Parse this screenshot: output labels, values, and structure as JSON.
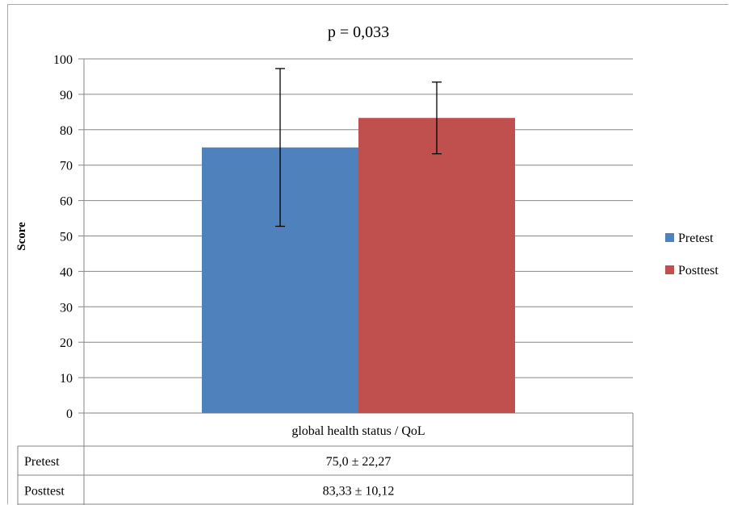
{
  "chart_data": {
    "type": "bar",
    "title": "p = 0,033",
    "ylabel": "Score",
    "ylim": [
      0,
      100
    ],
    "yticks": [
      0,
      10,
      20,
      30,
      40,
      50,
      60,
      70,
      80,
      90,
      100
    ],
    "grid": true,
    "legend_position": "right",
    "categories": [
      "global health status / QoL"
    ],
    "series": [
      {
        "name": "Pretest",
        "values": [
          75.0
        ],
        "error": [
          22.27
        ],
        "color": "#4f81bd",
        "table_text": "75,0 ± 22,27"
      },
      {
        "name": "Posttest",
        "values": [
          83.33
        ],
        "error": [
          10.12
        ],
        "color": "#c0504d",
        "table_text": "83,33 ± 10,12"
      }
    ]
  }
}
